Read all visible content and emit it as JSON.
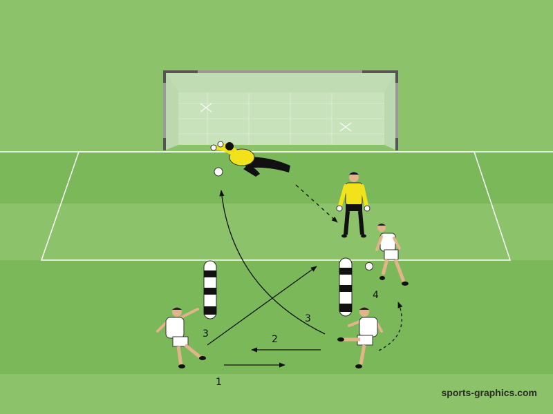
{
  "diagram": {
    "watermark": "sports-graphics.com",
    "step_labels": {
      "pass_1": "1",
      "pass_2": "2",
      "shot_3_left": "3",
      "shot_3_right": "3",
      "run_4": "4"
    }
  },
  "colors": {
    "grass_light": "#8cc26a",
    "grass_dark": "#7ab85a",
    "line": "#ffffff",
    "keeper_shirt": "#f2e21a",
    "player_kit": "#ffffff",
    "mannequin_black": "#111111"
  }
}
